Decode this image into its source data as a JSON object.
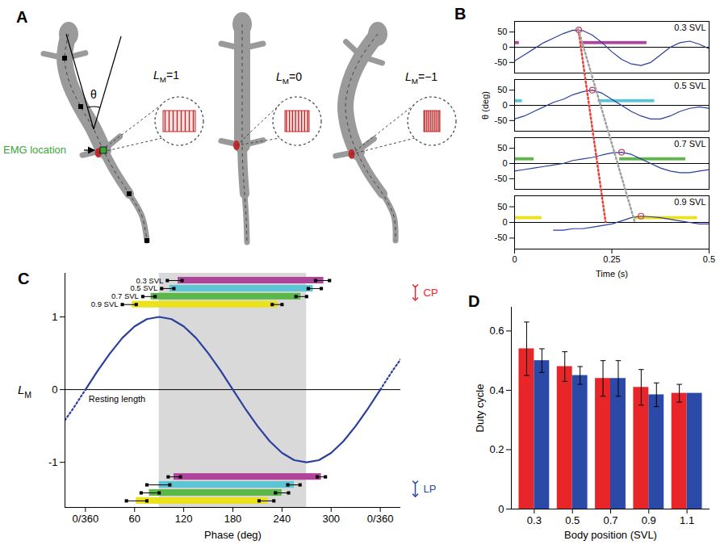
{
  "panel_A": {
    "panel": "A",
    "emg_label": "EMG location",
    "angle_label": "θ",
    "states": [
      {
        "label": {
          "symbol": "L",
          "subscript": "M",
          "suffix": "=1"
        },
        "value": 1
      },
      {
        "label": {
          "symbol": "L",
          "subscript": "M",
          "suffix": "=0"
        },
        "value": 0
      },
      {
        "label": {
          "symbol": "L",
          "subscript": "M",
          "suffix": "=−1"
        },
        "value": -1
      }
    ]
  },
  "chart_data": [
    {
      "panel": "B",
      "type": "line",
      "xlabel": "Time (s)",
      "ylabel": "θ (deg)",
      "xlim": [
        0,
        0.5
      ],
      "xticks": [
        0,
        0.25,
        0.5
      ],
      "ylim": [
        -85,
        85
      ],
      "yticks": [
        -50,
        0,
        50
      ],
      "reference_line": 0,
      "color": "#2a3f9e",
      "x": [
        0,
        0.025,
        0.05,
        0.075,
        0.1,
        0.125,
        0.15,
        0.175,
        0.2,
        0.225,
        0.25,
        0.275,
        0.3,
        0.325,
        0.35,
        0.375,
        0.4,
        0.425,
        0.45,
        0.475,
        0.5
      ],
      "series": [
        {
          "name": "0.3 SVL",
          "values": [
            -45,
            -25,
            -5,
            15,
            30,
            45,
            56,
            55,
            40,
            15,
            -15,
            -40,
            -55,
            -60,
            -50,
            -25,
            0,
            15,
            20,
            10,
            -5
          ],
          "bursts": {
            "color": "#b0449b",
            "intervals": [
              [
                0,
                0.012
              ],
              [
                0.17,
                0.34
              ]
            ]
          },
          "peak": {
            "time": 0.165,
            "theta": 57,
            "color": "#c8385a"
          }
        },
        {
          "name": "0.5 SVL",
          "values": [
            -45,
            -35,
            -20,
            -5,
            10,
            20,
            35,
            45,
            50,
            40,
            20,
            0,
            -20,
            -35,
            -45,
            -45,
            -35,
            -20,
            -10,
            -5,
            -10
          ],
          "bursts": {
            "color": "#5bc5d5",
            "intervals": [
              [
                0,
                0.02
              ],
              [
                0.215,
                0.36
              ]
            ]
          },
          "peak": {
            "time": 0.2,
            "theta": 50,
            "color": "#c8385a"
          }
        },
        {
          "name": "0.7 SVL",
          "values": [
            -25,
            -20,
            -15,
            -10,
            -5,
            0,
            10,
            15,
            20,
            28,
            35,
            37,
            30,
            15,
            0,
            -15,
            -25,
            -30,
            -30,
            -25,
            -20
          ],
          "bursts": {
            "color": "#5bb848",
            "intervals": [
              [
                0,
                0.05
              ],
              [
                0.27,
                0.44
              ]
            ]
          },
          "peak": {
            "time": 0.275,
            "theta": 37,
            "color": "#c8385a"
          }
        },
        {
          "name": "0.9 SVL",
          "values": [
            null,
            null,
            null,
            null,
            -25,
            -25,
            -20,
            -20,
            -15,
            -10,
            -5,
            5,
            15,
            20,
            18,
            15,
            10,
            5,
            0,
            -5,
            -5
          ],
          "bursts": {
            "color": "#ece21c",
            "intervals": [
              [
                0,
                0.07
              ],
              [
                0.31,
                0.47
              ]
            ]
          },
          "peak": {
            "time": 0.325,
            "theta": 20,
            "color": "#c8385a"
          }
        }
      ],
      "guides": [
        {
          "color": "#e8413a",
          "time": [
            0.165,
            0.235
          ],
          "theta": [
            57,
            0
          ]
        },
        {
          "color": "#a0a0a0",
          "time": [
            0.165,
            0.31
          ],
          "theta": [
            57,
            0
          ]
        }
      ]
    },
    {
      "panel": "C",
      "type": "line",
      "xlabel": "Phase (deg)",
      "ylabel": {
        "symbol": "L",
        "subscript": "M"
      },
      "xlim": [
        -25,
        385
      ],
      "xticks": [
        {
          "value": 0,
          "label": "0/360"
        },
        60,
        120,
        180,
        240,
        300,
        {
          "value": 360,
          "label": "0/360"
        }
      ],
      "ylim": [
        -1.62,
        1.6
      ],
      "yticks": [
        -1,
        0,
        1
      ],
      "shaded": [
        90,
        270
      ],
      "baseline": {
        "value": 0,
        "label": "Resting length"
      },
      "curve": {
        "color": "#2a3f9e",
        "line_style": "solid",
        "x": [
          0,
          15,
          30,
          45,
          60,
          75,
          90,
          105,
          120,
          135,
          150,
          165,
          180,
          195,
          210,
          225,
          240,
          255,
          270,
          285,
          300,
          315,
          330,
          345,
          360
        ],
        "values": [
          0,
          0.26,
          0.5,
          0.71,
          0.87,
          0.97,
          1,
          0.97,
          0.87,
          0.71,
          0.5,
          0.26,
          0,
          -0.26,
          -0.5,
          -0.71,
          -0.87,
          -0.97,
          -1,
          -0.97,
          -0.87,
          -0.71,
          -0.5,
          -0.26,
          0
        ]
      },
      "extensions": [
        {
          "color": "#2a3f9e",
          "line_style": "dotted",
          "x": [
            -25,
            -15,
            0
          ],
          "values": [
            -0.42,
            -0.26,
            0
          ]
        },
        {
          "color": "#2a3f9e",
          "line_style": "dotted",
          "x": [
            360,
            375,
            385
          ],
          "values": [
            0,
            0.26,
            0.42
          ]
        }
      ],
      "groups": [
        {
          "name": "CP",
          "color": "#e8262a",
          "bars": [
            {
              "name": "0.3 SVL",
              "color": "#b0449b",
              "onset": 113,
              "onset_error": [
                100,
                118
              ],
              "offset": 291,
              "offset_error": [
                281,
                298
              ]
            },
            {
              "name": "0.5 SVL",
              "color": "#5bc5d5",
              "onset": 103,
              "onset_error": [
                93,
                108
              ],
              "offset": 278,
              "offset_error": [
                272,
                288
              ]
            },
            {
              "name": "0.7 SVL",
              "color": "#5bb848",
              "onset": 80,
              "onset_error": [
                70,
                85
              ],
              "offset": 263,
              "offset_error": [
                257,
                270
              ]
            },
            {
              "name": "0.9 SVL",
              "color": "#ece21c",
              "onset": 57,
              "onset_error": [
                45,
                62
              ],
              "offset": 235,
              "offset_error": [
                228,
                240
              ]
            }
          ]
        },
        {
          "name": "LP",
          "color": "#2b4aa8",
          "bars": [
            {
              "color": "#b0449b",
              "onset": 108,
              "onset_error": [
                101,
                116
              ],
              "offset": 288,
              "offset_error": [
                283,
                293
              ]
            },
            {
              "color": "#5bc5d5",
              "onset": 90,
              "onset_error": [
                75,
                103
              ],
              "offset": 255,
              "offset_error": [
                247,
                262
              ]
            },
            {
              "color": "#5bb848",
              "onset": 78,
              "onset_error": [
                68,
                90
              ],
              "offset": 240,
              "offset_error": [
                232,
                248
              ]
            },
            {
              "color": "#ece21c",
              "onset": 62,
              "onset_error": [
                50,
                75
              ],
              "offset": 223,
              "offset_error": [
                212,
                230
              ]
            }
          ]
        }
      ]
    },
    {
      "panel": "D",
      "type": "bar",
      "xlabel": "Body position (SVL)",
      "ylabel": "Duty cycle",
      "categories": [
        "0.3",
        "0.5",
        "0.7",
        "0.9",
        "1.1"
      ],
      "ylim": [
        0,
        0.68
      ],
      "yticks": [
        0,
        0.2,
        0.4,
        0.6
      ],
      "series": [
        {
          "color": "#e8262a",
          "values": [
            0.54,
            0.48,
            0.44,
            0.41,
            0.39
          ],
          "errors": [
            0.09,
            0.05,
            0.06,
            0.06,
            0.03
          ]
        },
        {
          "color": "#2b4aa8",
          "values": [
            0.5,
            0.45,
            0.44,
            0.385,
            0.39
          ],
          "errors": [
            0.04,
            0.03,
            0.06,
            0.04,
            null
          ]
        }
      ]
    }
  ]
}
